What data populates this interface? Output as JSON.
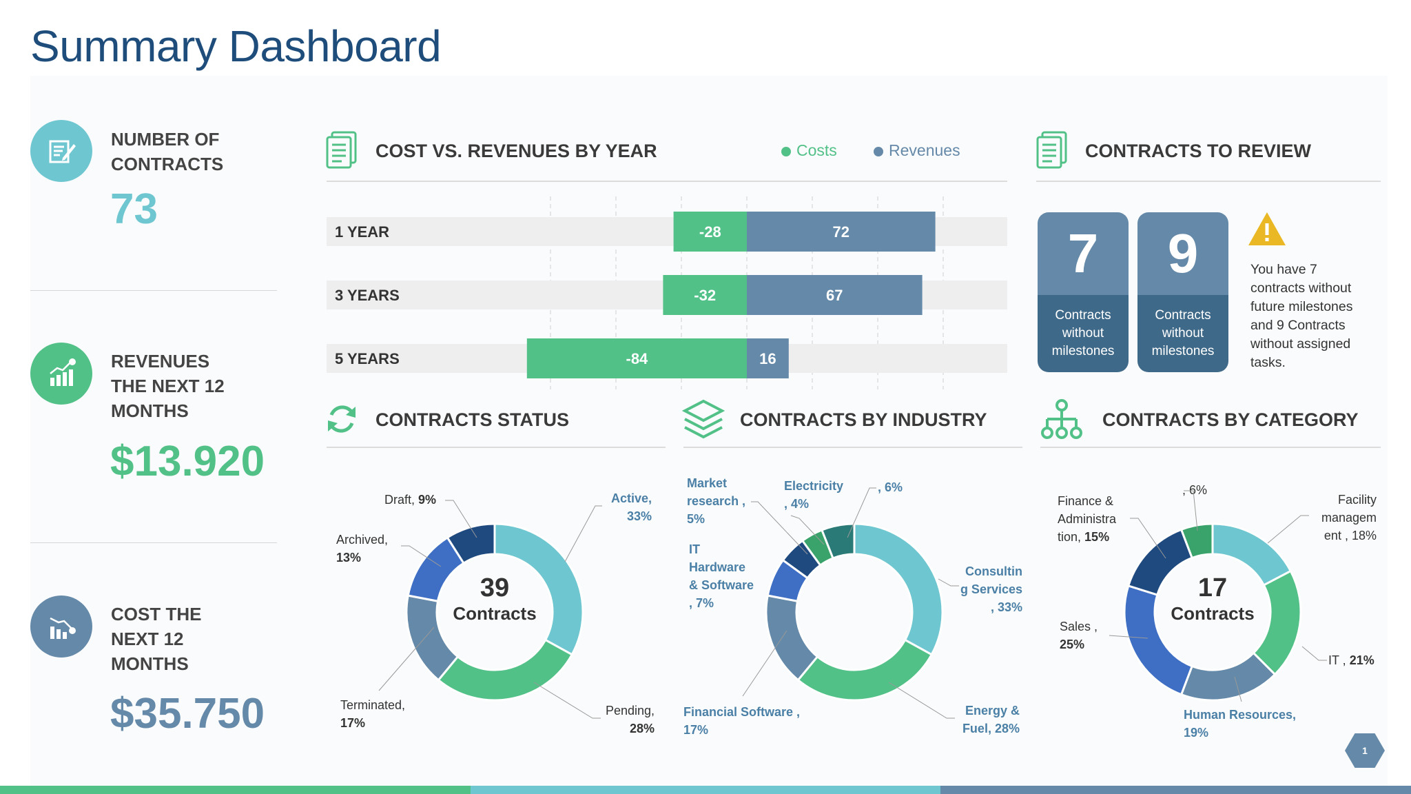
{
  "title": "Summary Dashboard",
  "colors": {
    "teal": "#6ec6d0",
    "green": "#52c188",
    "steel": "#6589a8",
    "navy": "#1e4d7b",
    "blue": "#3e6fc4",
    "darkblue": "#1f4a80",
    "teal_dark": "#2a7a78",
    "green_dark": "#3aa36b"
  },
  "kpis": [
    {
      "label": "NUMBER OF CONTRACTS",
      "label_lines": [
        "NUMBER OF",
        "CONTRACTS"
      ],
      "value": "73",
      "icon": "contract-edit-icon"
    },
    {
      "label": "REVENUES THE NEXT 12 MONTHS",
      "label_lines": [
        "REVENUES",
        "THE NEXT 12",
        "MONTHS"
      ],
      "value": "$13.920",
      "icon": "revenue-chart-icon"
    },
    {
      "label": "COST THE NEXT 12 MONTHS",
      "label_lines": [
        "COST THE",
        "NEXT 12",
        "MONTHS"
      ],
      "value": "$35.750",
      "icon": "cost-chart-icon"
    }
  ],
  "sections": {
    "cost_vs_revenue": "COST VS. REVENUES BY YEAR",
    "contracts_to_review": "CONTRACTS TO REVIEW",
    "contracts_status": "CONTRACTS STATUS",
    "contracts_by_industry": "CONTRACTS BY INDUSTRY",
    "contracts_by_category": "CONTRACTS BY CATEGORY"
  },
  "legend": {
    "costs": "Costs",
    "revenues": "Revenues"
  },
  "chart_data": [
    {
      "type": "bar",
      "title": "COST VS. REVENUES BY YEAR",
      "categories": [
        "1 YEAR",
        "3 YEARS",
        "5 YEARS"
      ],
      "series": [
        {
          "name": "Costs",
          "values": [
            -28,
            -32,
            -84
          ]
        },
        {
          "name": "Revenues",
          "values": [
            72,
            67,
            16
          ]
        }
      ],
      "xlim": [
        -100,
        100
      ]
    },
    {
      "type": "pie",
      "title": "CONTRACTS STATUS",
      "center_value": "39",
      "center_label": "Contracts",
      "slices": [
        {
          "name": "Active",
          "value": 33
        },
        {
          "name": "Pending",
          "value": 28
        },
        {
          "name": "Terminated",
          "value": 17
        },
        {
          "name": "Archived",
          "value": 13
        },
        {
          "name": "Draft",
          "value": 9
        }
      ]
    },
    {
      "type": "pie",
      "title": "CONTRACTS BY INDUSTRY",
      "slices": [
        {
          "name": "Consulting Services",
          "value": 33
        },
        {
          "name": "Energy & Fuel",
          "value": 28
        },
        {
          "name": "Financial Software",
          "value": 17
        },
        {
          "name": "IT Hardware & Software",
          "value": 7
        },
        {
          "name": "Market research",
          "value": 5
        },
        {
          "name": "Electricity",
          "value": 4
        },
        {
          "name": "",
          "value": 6
        }
      ]
    },
    {
      "type": "pie",
      "title": "CONTRACTS BY CATEGORY",
      "center_value": "17",
      "center_label": "Contracts",
      "slices": [
        {
          "name": "Facility management",
          "value": 18
        },
        {
          "name": "IT",
          "value": 21
        },
        {
          "name": "Human Resources",
          "value": 19
        },
        {
          "name": "Sales",
          "value": 25
        },
        {
          "name": "Finance & Administration",
          "value": 15
        },
        {
          "name": "",
          "value": 6
        }
      ]
    }
  ],
  "review": {
    "cards": [
      {
        "number": "7",
        "caption": "Contracts without milestones"
      },
      {
        "number": "9",
        "caption": "Contracts without milestones"
      }
    ],
    "note": "You have 7 contracts without future milestones and 9 Contracts without assigned tasks."
  },
  "status_labels": {
    "draft_name": "Draft,",
    "draft_pct": "9%",
    "archived_name": "Archived,",
    "archived_pct": "13%",
    "terminated_name": "Terminated,",
    "terminated_pct": "17%",
    "active_name": "Active,",
    "active_pct": "33%",
    "pending_name": "Pending,",
    "pending_pct": "28%"
  },
  "industry_labels": {
    "market_l1": "Market",
    "market_l2": "research ,",
    "market_pct": "5%",
    "it_l1": "IT",
    "it_l2": "Hardware",
    "it_l3": "& Software",
    "it_pct": ", 7%",
    "elec_l1": "Electricity",
    "elec_pct": ", 4%",
    "unnamed_pct": ", 6%",
    "consult_l1": "Consultin",
    "consult_l2": "g  Services",
    "consult_pct": ", 33%",
    "fin_l1": "Financial Software ,",
    "fin_pct": "17%",
    "energy_l1": "Energy &",
    "energy_l2": "Fuel,",
    "energy_pct": "28%"
  },
  "category_labels": {
    "finance_l1": "Finance &",
    "finance_l2": "Administra",
    "finance_l3": "tion,",
    "finance_pct": "15%",
    "unnamed_pct": ", 6%",
    "facility_l1": "Facility",
    "facility_l2": "managem",
    "facility_l3": "ent ,",
    "facility_pct": "18%",
    "sales_name": "Sales ,",
    "sales_pct": "25%",
    "it_name": "IT ,",
    "it_pct": "21%",
    "hr_name": "Human Resources,",
    "hr_pct": "19%"
  },
  "page_number": "1"
}
